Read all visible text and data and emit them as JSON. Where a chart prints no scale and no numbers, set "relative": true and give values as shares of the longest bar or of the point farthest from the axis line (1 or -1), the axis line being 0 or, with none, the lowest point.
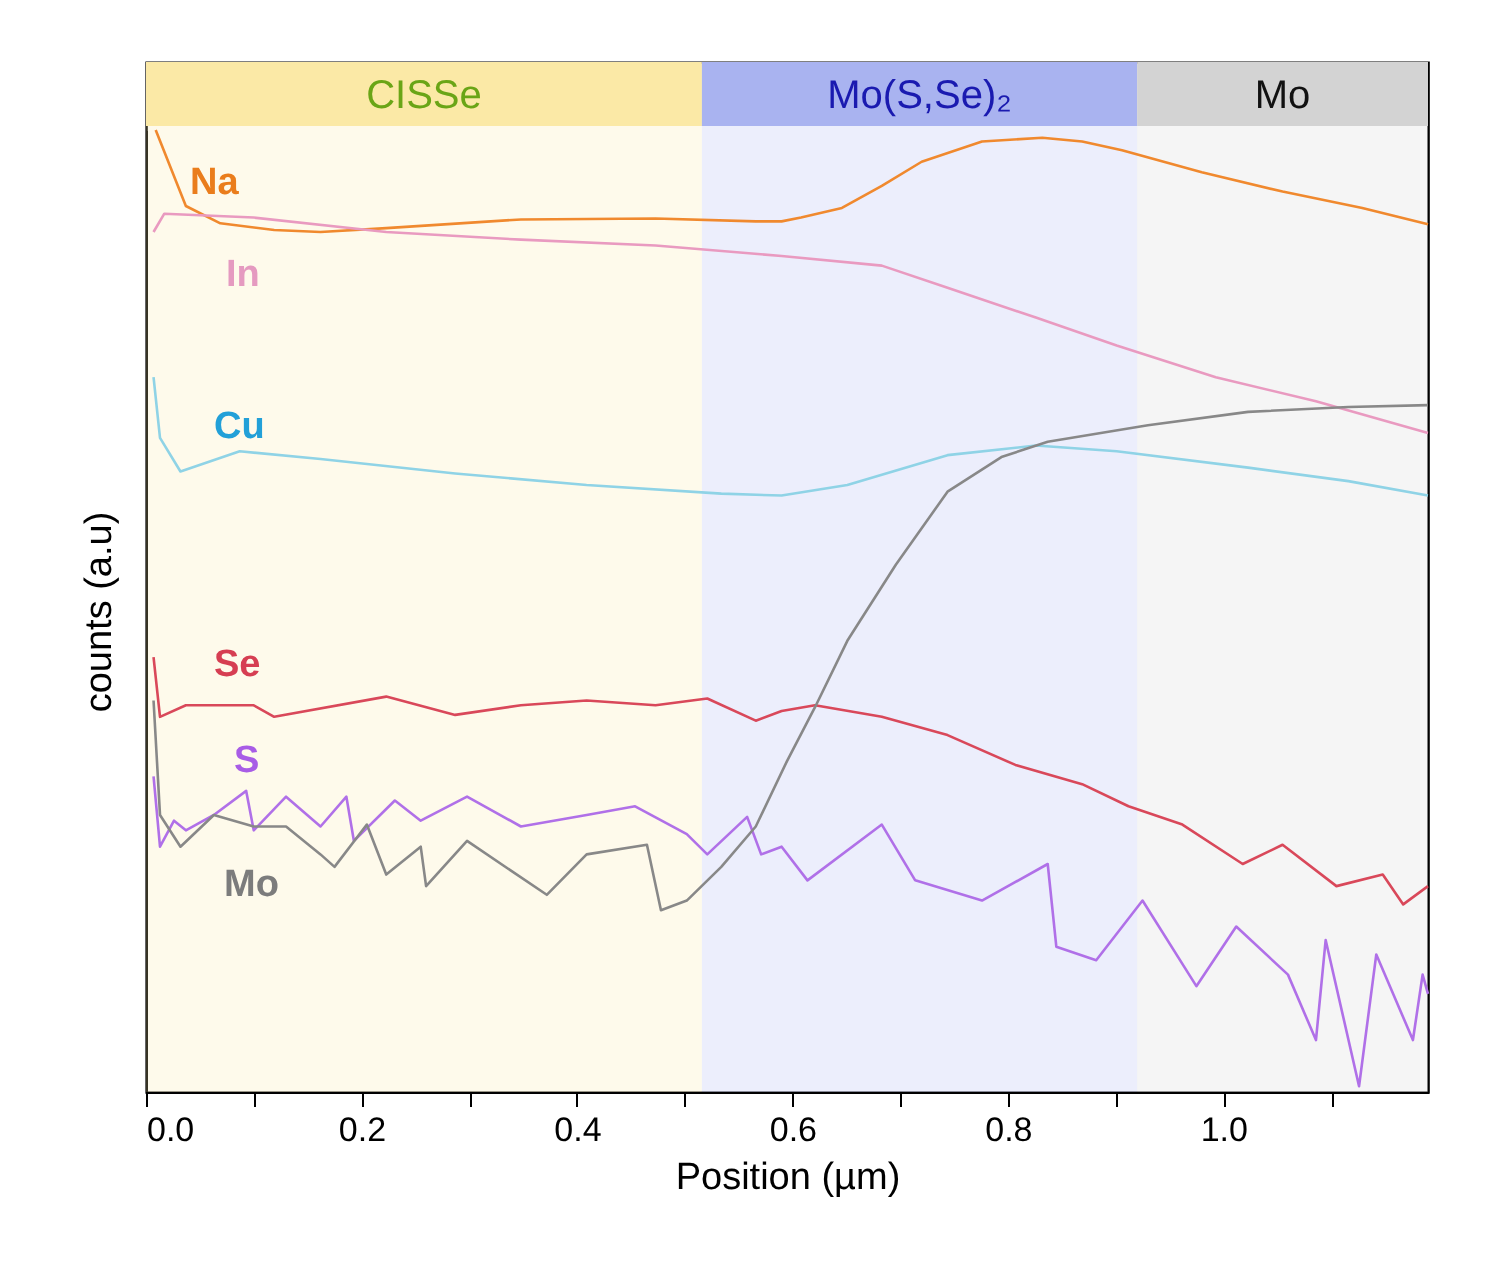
{
  "chart_data": {
    "type": "line",
    "relative": true,
    "xlabel": "Position (µm)",
    "ylabel": "counts (a.u)",
    "xlim": [
      0,
      1.19
    ],
    "xticks": [
      {
        "value": 0,
        "label": "0.0"
      },
      {
        "value": 0.1,
        "label": null
      },
      {
        "value": 0.2,
        "label": "0.2"
      },
      {
        "value": 0.3,
        "label": null
      },
      {
        "value": 0.4,
        "label": "0.4"
      },
      {
        "value": 0.5,
        "label": null
      },
      {
        "value": 0.6,
        "label": "0.6"
      },
      {
        "value": 0.7,
        "label": null
      },
      {
        "value": 0.8,
        "label": "0.8"
      },
      {
        "value": 0.9,
        "label": null
      },
      {
        "value": 1.0,
        "label": "1.0"
      },
      {
        "value": 1.1,
        "label": null
      }
    ],
    "legend": false,
    "grid": false,
    "line_style": "solid",
    "marker": "none",
    "bands": [
      {
        "axis": "x",
        "from": 0,
        "to": 0.516,
        "label": "CISSe",
        "color": "#fbe9a6"
      },
      {
        "axis": "x",
        "from": 0.516,
        "to": 0.92,
        "label": "Mo(S,Se)₂",
        "color": "#a9b3f0"
      },
      {
        "axis": "x",
        "from": 0.92,
        "to": 1.19,
        "label": "Mo",
        "color": "#d3d3d3"
      }
    ],
    "series": [
      {
        "name": "Na",
        "color": "#f0892e",
        "x": [
          0.009,
          0.037,
          0.069,
          0.119,
          0.162,
          0.223,
          0.348,
          0.473,
          0.566,
          0.59,
          0.608,
          0.646,
          0.683,
          0.72,
          0.776,
          0.832,
          0.869,
          0.906,
          0.98,
          1.055,
          1.129,
          1.19
        ],
        "values": [
          1.0,
          0.921,
          0.903,
          0.896,
          0.894,
          0.898,
          0.907,
          0.908,
          0.905,
          0.905,
          0.909,
          0.919,
          0.942,
          0.967,
          0.988,
          0.992,
          0.988,
          0.979,
          0.956,
          0.936,
          0.919,
          0.902
        ]
      },
      {
        "name": "In",
        "color": "#e99ac0",
        "x": [
          0.007,
          0.017,
          0.1,
          0.223,
          0.348,
          0.473,
          0.59,
          0.683,
          0.744,
          0.826,
          0.901,
          0.993,
          1.086,
          1.19
        ],
        "values": [
          0.894,
          0.913,
          0.909,
          0.894,
          0.886,
          0.88,
          0.869,
          0.859,
          0.836,
          0.805,
          0.776,
          0.743,
          0.718,
          0.685
        ]
      },
      {
        "name": "Cu",
        "color": "#8fd3e6",
        "x": [
          0.007,
          0.013,
          0.032,
          0.087,
          0.162,
          0.287,
          0.409,
          0.534,
          0.59,
          0.651,
          0.744,
          0.826,
          0.901,
          1.023,
          1.116,
          1.19
        ],
        "values": [
          0.743,
          0.68,
          0.645,
          0.666,
          0.658,
          0.643,
          0.631,
          0.622,
          0.62,
          0.631,
          0.662,
          0.672,
          0.666,
          0.649,
          0.635,
          0.62
        ]
      },
      {
        "name": "Se",
        "color": "#d9485a",
        "x": [
          0.007,
          0.013,
          0.037,
          0.1,
          0.119,
          0.223,
          0.287,
          0.348,
          0.409,
          0.473,
          0.521,
          0.566,
          0.59,
          0.621,
          0.683,
          0.744,
          0.807,
          0.869,
          0.912,
          0.962,
          1.018,
          1.055,
          1.105,
          1.148,
          1.167,
          1.19
        ],
        "values": [
          0.452,
          0.39,
          0.402,
          0.402,
          0.39,
          0.411,
          0.392,
          0.402,
          0.407,
          0.402,
          0.409,
          0.386,
          0.396,
          0.402,
          0.39,
          0.371,
          0.34,
          0.32,
          0.297,
          0.278,
          0.237,
          0.257,
          0.214,
          0.226,
          0.195,
          0.214
        ]
      },
      {
        "name": "S",
        "color": "#b070e8",
        "x": [
          0.007,
          0.013,
          0.026,
          0.037,
          0.063,
          0.093,
          0.1,
          0.13,
          0.162,
          0.186,
          0.193,
          0.231,
          0.255,
          0.298,
          0.348,
          0.409,
          0.454,
          0.502,
          0.521,
          0.558,
          0.571,
          0.59,
          0.614,
          0.683,
          0.714,
          0.776,
          0.837,
          0.845,
          0.882,
          0.925,
          0.975,
          1.012,
          1.06,
          1.086,
          1.095,
          1.126,
          1.142,
          1.176,
          1.185,
          1.19
        ],
        "values": [
          0.328,
          0.255,
          0.282,
          0.272,
          0.288,
          0.313,
          0.272,
          0.307,
          0.276,
          0.307,
          0.261,
          0.303,
          0.282,
          0.307,
          0.276,
          0.288,
          0.297,
          0.268,
          0.247,
          0.286,
          0.247,
          0.255,
          0.22,
          0.278,
          0.22,
          0.199,
          0.237,
          0.151,
          0.137,
          0.199,
          0.11,
          0.172,
          0.122,
          0.054,
          0.158,
          0.006,
          0.143,
          0.054,
          0.122,
          0.102
        ]
      },
      {
        "name": "Mo",
        "color": "#888888",
        "x": [
          0.007,
          0.013,
          0.032,
          0.063,
          0.1,
          0.13,
          0.162,
          0.175,
          0.205,
          0.223,
          0.255,
          0.26,
          0.298,
          0.372,
          0.409,
          0.465,
          0.478,
          0.502,
          0.534,
          0.566,
          0.595,
          0.621,
          0.651,
          0.696,
          0.744,
          0.794,
          0.837,
          0.93,
          1.023,
          1.116,
          1.19
        ],
        "values": [
          0.407,
          0.288,
          0.255,
          0.288,
          0.276,
          0.276,
          0.247,
          0.234,
          0.278,
          0.226,
          0.255,
          0.214,
          0.261,
          0.205,
          0.247,
          0.257,
          0.189,
          0.199,
          0.234,
          0.276,
          0.344,
          0.4,
          0.469,
          0.548,
          0.624,
          0.66,
          0.676,
          0.693,
          0.707,
          0.712,
          0.714
        ]
      }
    ]
  }
}
